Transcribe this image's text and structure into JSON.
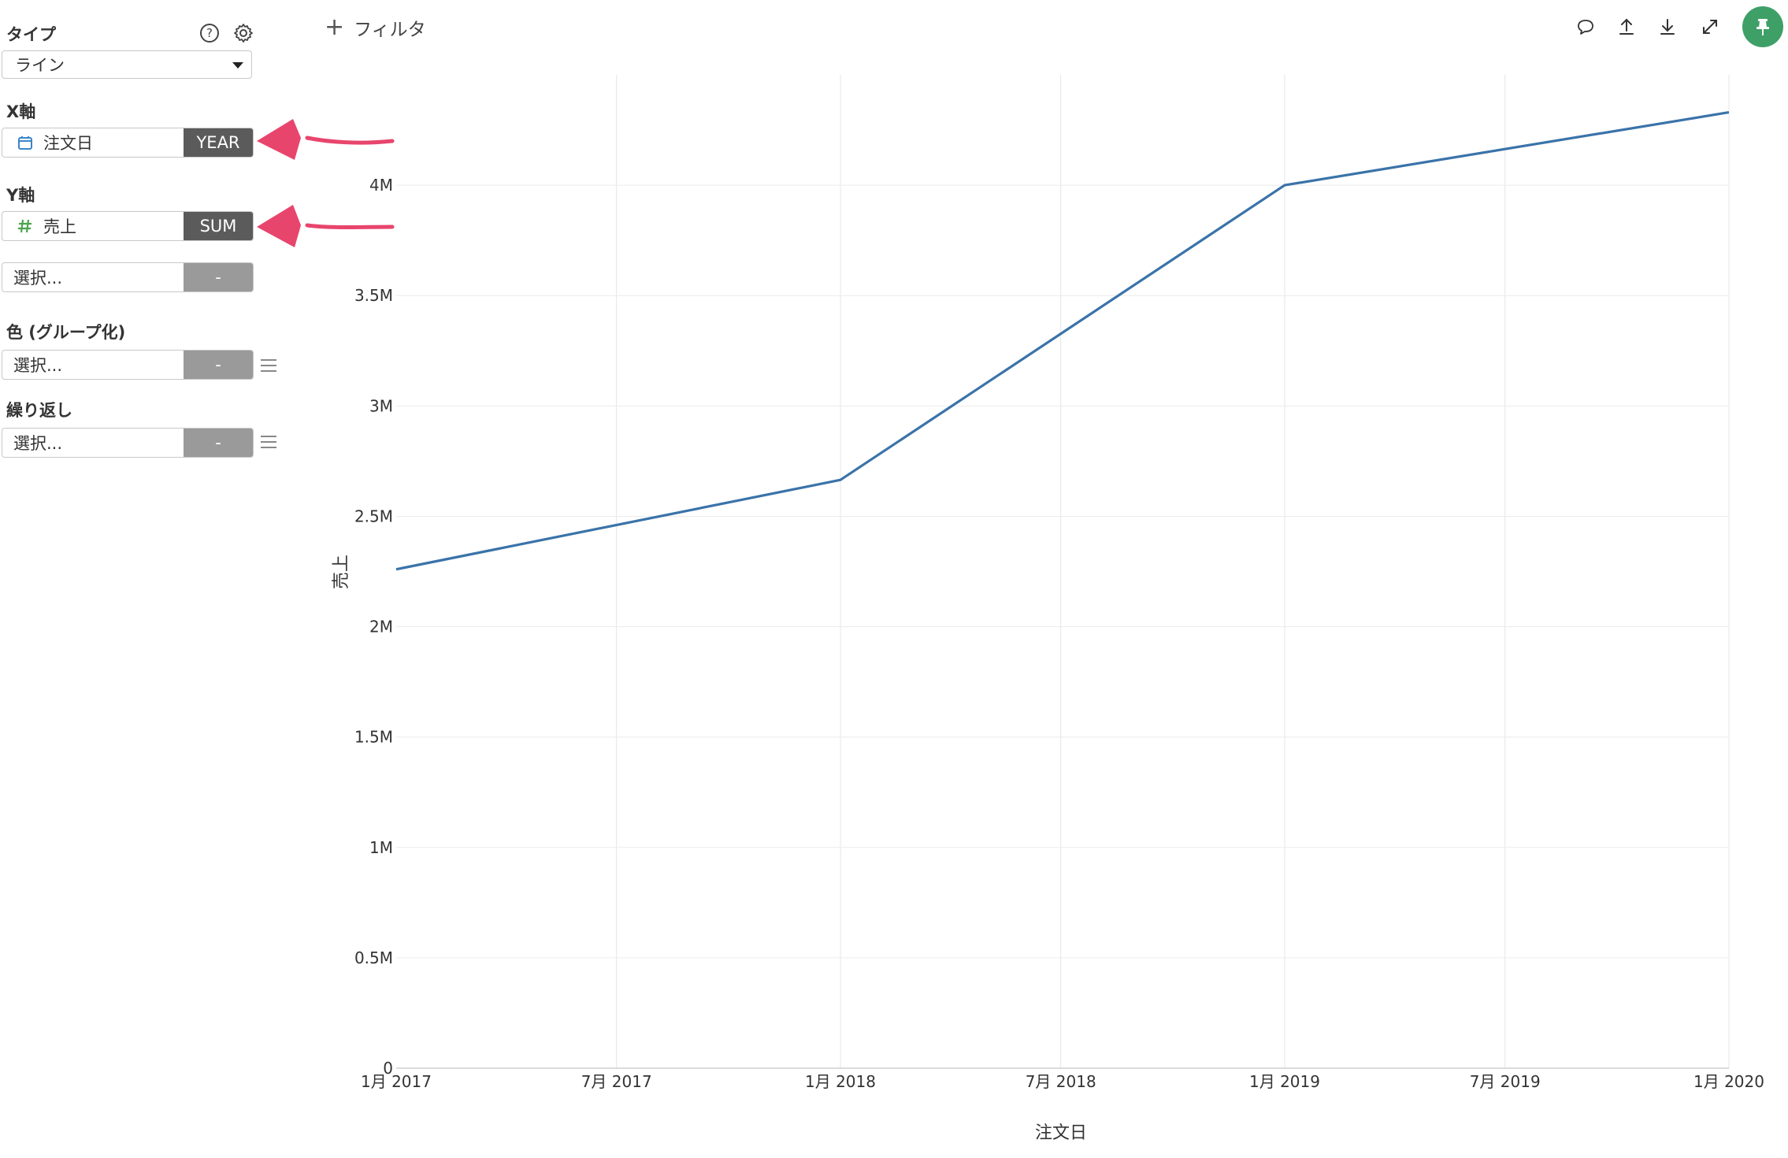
{
  "sidebar": {
    "type_label": "タイプ",
    "type_value": "ライン",
    "x_axis": {
      "label": "X軸",
      "field": "注文日",
      "agg": "YEAR"
    },
    "y_axis": {
      "label": "Y軸",
      "field": "売上",
      "agg": "SUM"
    },
    "y_axis_extra": {
      "placeholder": "選択...",
      "agg": "-"
    },
    "color_group": {
      "label": "色 (グループ化)",
      "placeholder": "選択...",
      "agg": "-"
    },
    "repeat": {
      "label": "繰り返し",
      "placeholder": "選択...",
      "agg": "-"
    }
  },
  "toolbar": {
    "filter_label": "フィルタ"
  },
  "colors": {
    "line": "#3a73a9",
    "arrow": "#e8456d",
    "pin": "#3fa067",
    "dark_btn": "#5b5b5b",
    "gray_btn": "#9a9a9a"
  },
  "chart_data": {
    "type": "line",
    "xlabel": "注文日",
    "ylabel": "売上",
    "x_ticks": [
      "1月 2017",
      "7月 2017",
      "1月 2018",
      "7月 2018",
      "1月 2019",
      "7月 2019",
      "1月 2020"
    ],
    "y_ticks": [
      "0",
      "0.5M",
      "1M",
      "1.5M",
      "2M",
      "2.5M",
      "3M",
      "3.5M",
      "4M"
    ],
    "ylim": [
      0,
      4500000
    ],
    "series": [
      {
        "x": [
          "2017-01-01",
          "2018-01-01",
          "2019-01-01",
          "2020-01-01"
        ],
        "values": [
          2260000,
          2665000,
          4000000,
          4330000
        ]
      }
    ],
    "grid": true
  }
}
